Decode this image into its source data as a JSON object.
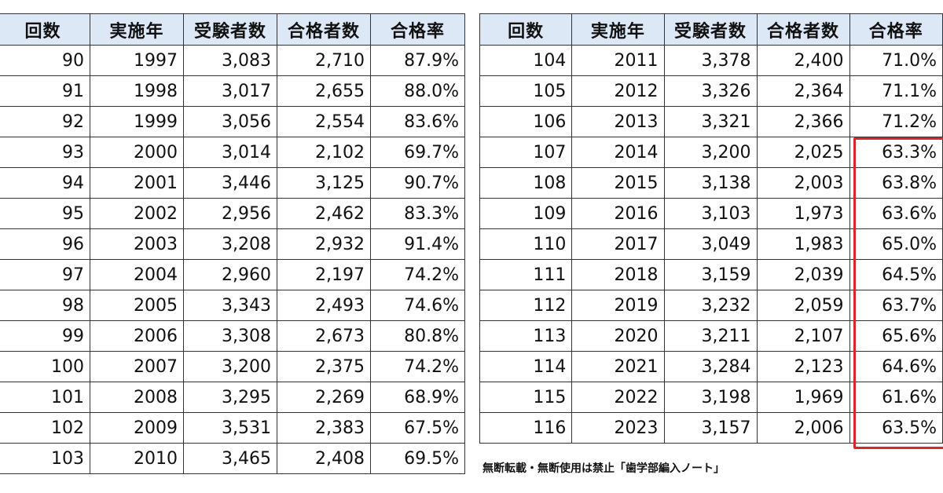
{
  "headers": [
    "回数",
    "実施年",
    "受験者数",
    "合格者数",
    "合格率"
  ],
  "left_rows": [
    [
      "90",
      "1997",
      "3,083",
      "2,710",
      "87.9%"
    ],
    [
      "91",
      "1998",
      "3,017",
      "2,655",
      "88.0%"
    ],
    [
      "92",
      "1999",
      "3,056",
      "2,554",
      "83.6%"
    ],
    [
      "93",
      "2000",
      "3,014",
      "2,102",
      "69.7%"
    ],
    [
      "94",
      "2001",
      "3,446",
      "3,125",
      "90.7%"
    ],
    [
      "95",
      "2002",
      "2,956",
      "2,462",
      "83.3%"
    ],
    [
      "96",
      "2003",
      "3,208",
      "2,932",
      "91.4%"
    ],
    [
      "97",
      "2004",
      "2,960",
      "2,197",
      "74.2%"
    ],
    [
      "98",
      "2005",
      "3,343",
      "2,493",
      "74.6%"
    ],
    [
      "99",
      "2006",
      "3,308",
      "2,673",
      "80.8%"
    ],
    [
      "100",
      "2007",
      "3,200",
      "2,375",
      "74.2%"
    ],
    [
      "101",
      "2008",
      "3,295",
      "2,269",
      "68.9%"
    ],
    [
      "102",
      "2009",
      "3,531",
      "2,383",
      "67.5%"
    ],
    [
      "103",
      "2010",
      "3,465",
      "2,408",
      "69.5%"
    ]
  ],
  "right_rows": [
    [
      "104",
      "2011",
      "3,378",
      "2,400",
      "71.0%"
    ],
    [
      "105",
      "2012",
      "3,326",
      "2,364",
      "71.1%"
    ],
    [
      "106",
      "2013",
      "3,321",
      "2,366",
      "71.2%"
    ],
    [
      "107",
      "2014",
      "3,200",
      "2,025",
      "63.3%"
    ],
    [
      "108",
      "2015",
      "3,138",
      "2,003",
      "63.8%"
    ],
    [
      "109",
      "2016",
      "3,103",
      "1,973",
      "63.6%"
    ],
    [
      "110",
      "2017",
      "3,049",
      "1,983",
      "65.0%"
    ],
    [
      "111",
      "2018",
      "3,159",
      "2,039",
      "64.5%"
    ],
    [
      "112",
      "2019",
      "3,232",
      "2,059",
      "63.7%"
    ],
    [
      "113",
      "2020",
      "3,211",
      "2,107",
      "65.6%"
    ],
    [
      "114",
      "2021",
      "3,284",
      "2,123",
      "64.6%"
    ],
    [
      "115",
      "2022",
      "3,198",
      "1,969",
      "61.6%"
    ],
    [
      "116",
      "2023",
      "3,157",
      "2,006",
      "63.5%"
    ]
  ],
  "notice": "無断転載・無断使用は禁止「歯学部編入ノート」",
  "colors": {
    "header_bg": "#dce8f6",
    "highlight": "#d8262b",
    "grid_line": "#333333"
  }
}
